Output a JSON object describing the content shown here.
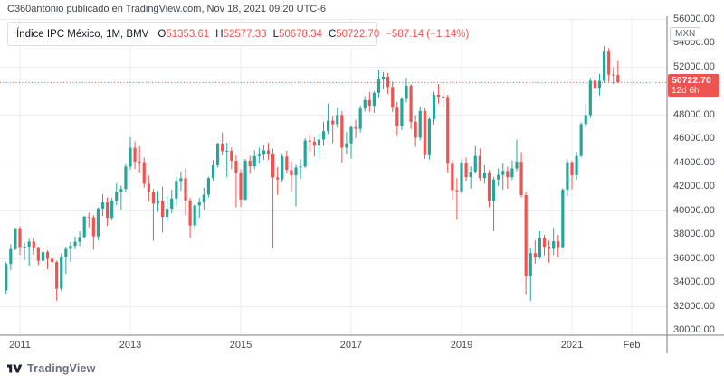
{
  "attribution": "C360antonio publicado en TradingView.com, Nov 18, 2021 09:20 UTC-6",
  "legend": {
    "title": "Índice IPC México, 1M, BMV",
    "o_label": "O",
    "o_value": "51353.61",
    "h_label": "H",
    "h_value": "52577.33",
    "l_label": "L",
    "l_value": "50678.34",
    "c_label": "C",
    "c_value": "50722.70",
    "change": "−587.14 (−1.14%)"
  },
  "price_axis": {
    "currency_badge": "MXN",
    "labels": [
      "56000.00",
      "54000.00",
      "52000.00",
      "48000.00",
      "46000.00",
      "44000.00",
      "42000.00",
      "40000.00",
      "38000.00",
      "36000.00",
      "34000.00",
      "32000.00",
      "30000.00"
    ],
    "last_price_label": "50722.70",
    "countdown_label": "12d 6h"
  },
  "logo": {
    "text": "TradingView"
  },
  "colors": {
    "up": "#26a69a",
    "down": "#ef5350",
    "accent_red": "#ef5350",
    "grid": "#e9edf2",
    "axis_line": "#787b86",
    "text_axis": "#444851",
    "text_dark": "#131722"
  },
  "chart_data": {
    "type": "candlestick",
    "symbol": "Índice IPC México",
    "interval": "1M",
    "exchange": "BMV",
    "start_month": "2010-10",
    "end_month": "2021-11",
    "current": {
      "open": 51353.61,
      "high": 52577.33,
      "low": 50678.34,
      "close": 50722.7,
      "change": -587.14,
      "change_pct": -1.14
    },
    "last_price": 50722.7,
    "y_axis": {
      "label_min": 30000,
      "label_max": 56000,
      "label_step": 2000,
      "grid_step": 4000,
      "grid_prices": [
        56000,
        52000,
        48000,
        44000,
        40000,
        36000,
        32000
      ],
      "grid": true
    },
    "x_ticks": [
      {
        "label": "2011",
        "month_index": 3
      },
      {
        "label": "2013",
        "month_index": 27
      },
      {
        "label": "2015",
        "month_index": 51
      },
      {
        "label": "2017",
        "month_index": 75
      },
      {
        "label": "2019",
        "month_index": 99
      },
      {
        "label": "2021",
        "month_index": 123
      },
      {
        "label": "Feb",
        "month_index": 136
      }
    ],
    "candles": [
      [
        33357,
        35722,
        33038,
        35568
      ],
      [
        35568,
        37213,
        35057,
        36817
      ],
      [
        36817,
        38577,
        36717,
        38551
      ],
      [
        38551,
        38696,
        36337,
        36982
      ],
      [
        36982,
        37370,
        35905,
        37020
      ],
      [
        37020,
        37670,
        35405,
        37441
      ],
      [
        37441,
        37761,
        36374,
        36963
      ],
      [
        36963,
        37025,
        35480,
        35833
      ],
      [
        35833,
        36717,
        35348,
        36558
      ],
      [
        36558,
        36700,
        35130,
        35999
      ],
      [
        35999,
        36400,
        32600,
        35721
      ],
      [
        35721,
        35850,
        32500,
        33503
      ],
      [
        33503,
        36444,
        33302,
        36160
      ],
      [
        36160,
        37020,
        34740,
        36829
      ],
      [
        36829,
        37410,
        35751,
        37078
      ],
      [
        37078,
        37861,
        36809,
        37422
      ],
      [
        37422,
        38288,
        37050,
        37816
      ],
      [
        37816,
        39597,
        37696,
        39521
      ],
      [
        39521,
        39860,
        38624,
        39461
      ],
      [
        39461,
        39659,
        36756,
        37872
      ],
      [
        37872,
        40294,
        37553,
        40199
      ],
      [
        40199,
        41388,
        39585,
        40704
      ],
      [
        40704,
        41142,
        38754,
        39422
      ],
      [
        39422,
        41100,
        39240,
        40867
      ],
      [
        40867,
        42300,
        40468,
        41620
      ],
      [
        41620,
        42115,
        40126,
        41834
      ],
      [
        41834,
        43897,
        41596,
        43706
      ],
      [
        43706,
        46175,
        43450,
        45278
      ],
      [
        45278,
        45815,
        43500,
        44121
      ],
      [
        44121,
        45408,
        43175,
        44077
      ],
      [
        44077,
        44467,
        41938,
        42263
      ],
      [
        42263,
        42966,
        40797,
        41588
      ],
      [
        41588,
        41831,
        37517,
        40623
      ],
      [
        40623,
        41658,
        39918,
        40838
      ],
      [
        40838,
        42026,
        38212,
        39492
      ],
      [
        39492,
        41240,
        39139,
        40185
      ],
      [
        40185,
        41780,
        39800,
        41039
      ],
      [
        41039,
        42856,
        40426,
        42499
      ],
      [
        42499,
        43300,
        41691,
        42727
      ],
      [
        42727,
        43540,
        39631,
        40879
      ],
      [
        40879,
        41100,
        37747,
        38783
      ],
      [
        38783,
        40545,
        38479,
        40462
      ],
      [
        40462,
        41076,
        39418,
        40712
      ],
      [
        40712,
        41950,
        40135,
        41363
      ],
      [
        41363,
        42842,
        41121,
        42737
      ],
      [
        42737,
        44246,
        42533,
        43818
      ],
      [
        43818,
        45698,
        43631,
        45628
      ],
      [
        45628,
        46554,
        44631,
        44986
      ],
      [
        44986,
        45703,
        42793,
        45028
      ],
      [
        45028,
        45300,
        43488,
        44190
      ],
      [
        44190,
        44632,
        40300,
        43146
      ],
      [
        43146,
        43472,
        40337,
        40951
      ],
      [
        40951,
        44350,
        40850,
        44190
      ],
      [
        44190,
        44600,
        43091,
        43725
      ],
      [
        43725,
        45060,
        43497,
        44582
      ],
      [
        44582,
        45288,
        43951,
        44704
      ],
      [
        44704,
        45554,
        44272,
        45054
      ],
      [
        45054,
        45686,
        44249,
        44753
      ],
      [
        44753,
        45200,
        36900,
        42800
      ],
      [
        42800,
        43663,
        41347,
        42633
      ],
      [
        42633,
        44800,
        42413,
        44543
      ],
      [
        44543,
        45029,
        43114,
        43419
      ],
      [
        43419,
        44150,
        41640,
        42978
      ],
      [
        42978,
        43850,
        40388,
        43631
      ],
      [
        43631,
        44300,
        42655,
        43715
      ],
      [
        43715,
        46078,
        43580,
        45881
      ],
      [
        45881,
        46300,
        44967,
        45785
      ],
      [
        45785,
        46152,
        44542,
        45459
      ],
      [
        45459,
        46500,
        44425,
        45966
      ],
      [
        45966,
        47426,
        45442,
        46661
      ],
      [
        46661,
        48956,
        46441,
        47541
      ],
      [
        47541,
        47950,
        45650,
        47246
      ],
      [
        47246,
        48600,
        46940,
        48009
      ],
      [
        48009,
        48343,
        43999,
        45286
      ],
      [
        45286,
        46600,
        44721,
        45643
      ],
      [
        45643,
        47150,
        44365,
        47001
      ],
      [
        47001,
        47620,
        46075,
        46857
      ],
      [
        46857,
        48800,
        46556,
        48542
      ],
      [
        48542,
        49580,
        48300,
        49261
      ],
      [
        49261,
        49939,
        48280,
        48788
      ],
      [
        48788,
        50000,
        48197,
        49857
      ],
      [
        49857,
        51772,
        49500,
        51012
      ],
      [
        51012,
        51600,
        50200,
        51210
      ],
      [
        51210,
        51520,
        49750,
        50346
      ],
      [
        50346,
        50800,
        48272,
        48626
      ],
      [
        48626,
        49100,
        46257,
        47092
      ],
      [
        47092,
        49500,
        46764,
        49354
      ],
      [
        49354,
        51121,
        49056,
        50456
      ],
      [
        50456,
        50600,
        46849,
        47438
      ],
      [
        47438,
        48000,
        45354,
        46125
      ],
      [
        46125,
        48700,
        45901,
        48358
      ],
      [
        48358,
        48600,
        44326,
        44663
      ],
      [
        44663,
        47800,
        44280,
        47663
      ],
      [
        47663,
        49976,
        47237,
        49698
      ],
      [
        49698,
        50600,
        48953,
        49548
      ],
      [
        49548,
        50145,
        48709,
        49504
      ],
      [
        49504,
        49700,
        43200,
        43943
      ],
      [
        43943,
        44270,
        40945,
        41733
      ],
      [
        41733,
        42740,
        39300,
        41640
      ],
      [
        41640,
        44308,
        41440,
        43988
      ],
      [
        43988,
        44450,
        42500,
        42824
      ],
      [
        42824,
        43720,
        41867,
        43281
      ],
      [
        43281,
        45425,
        43106,
        44597
      ],
      [
        44597,
        45211,
        42536,
        42749
      ],
      [
        42749,
        43825,
        42273,
        43161
      ],
      [
        43161,
        43400,
        40300,
        40863
      ],
      [
        40863,
        42850,
        38300,
        42623
      ],
      [
        42623,
        43550,
        42063,
        43011
      ],
      [
        43011,
        43978,
        41771,
        43337
      ],
      [
        43337,
        43700,
        41853,
        42820
      ],
      [
        42820,
        44213,
        42586,
        43541
      ],
      [
        43541,
        45955,
        43300,
        44108
      ],
      [
        44108,
        44900,
        41129,
        41324
      ],
      [
        41324,
        41550,
        33000,
        34554
      ],
      [
        34554,
        36900,
        32500,
        36470
      ],
      [
        36470,
        37544,
        35587,
        36122
      ],
      [
        36122,
        38300,
        35987,
        37716
      ],
      [
        37716,
        38000,
        36300,
        37020
      ],
      [
        37020,
        37540,
        35653,
        36841
      ],
      [
        36841,
        38585,
        36324,
        37459
      ],
      [
        37459,
        38000,
        36119,
        36988
      ],
      [
        36988,
        41894,
        36871,
        41779
      ],
      [
        41779,
        44300,
        41260,
        44067
      ],
      [
        44067,
        44200,
        41807,
        42986
      ],
      [
        42986,
        44950,
        42605,
        44593
      ],
      [
        44593,
        47406,
        44500,
        47246
      ],
      [
        47246,
        48950,
        46925,
        48010
      ],
      [
        48010,
        51117,
        47772,
        50886
      ],
      [
        50886,
        51500,
        49850,
        50290
      ],
      [
        50290,
        51450,
        49640,
        50868
      ],
      [
        50868,
        53768,
        50680,
        53305
      ],
      [
        53305,
        53600,
        50792,
        51386
      ],
      [
        51386,
        52005,
        50600,
        51310
      ],
      [
        51353.61,
        52577.33,
        50678.34,
        50722.7
      ]
    ]
  }
}
